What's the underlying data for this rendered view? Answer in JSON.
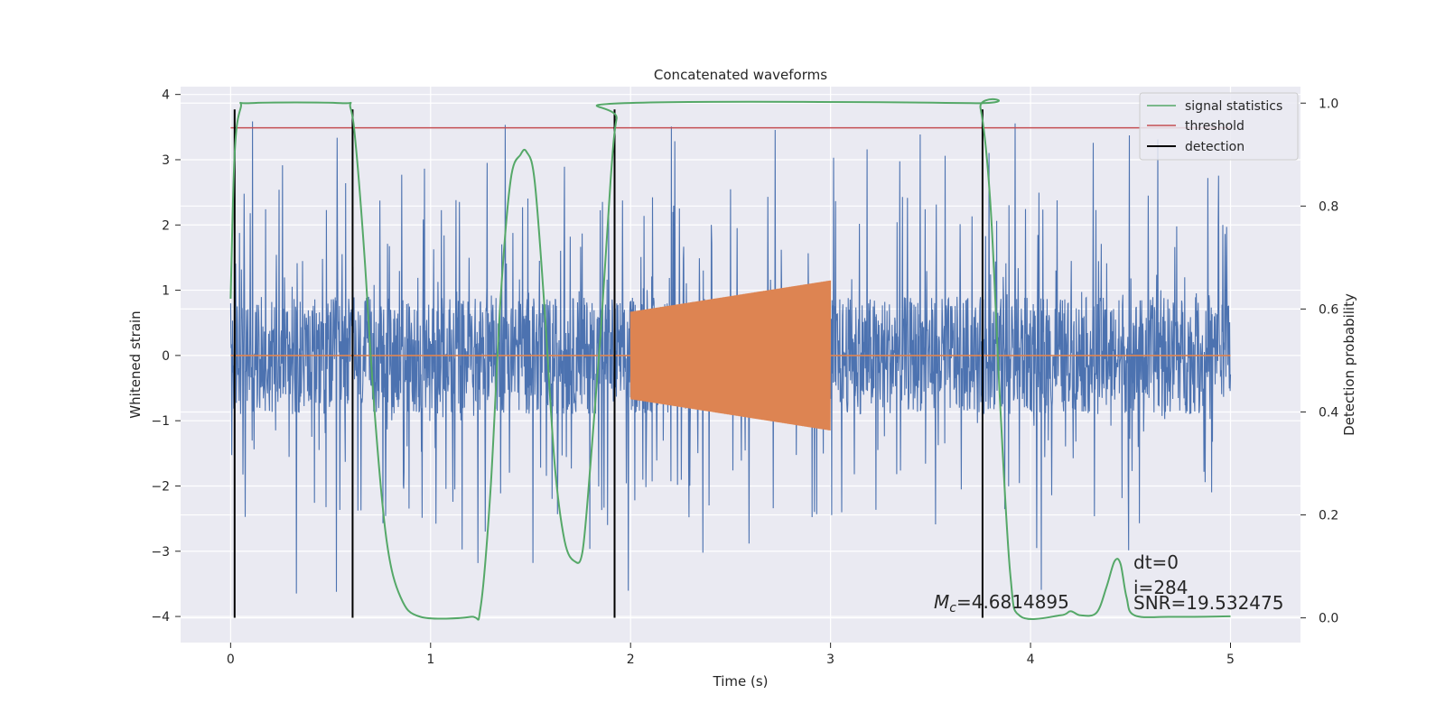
{
  "chart_data": {
    "type": "line",
    "title": "Concatenated waveforms",
    "xlabel": "Time (s)",
    "ylabel": "Whitened strain",
    "ylabel_right": "Detection probability",
    "xlim": [
      -0.25,
      5.35
    ],
    "ylim": [
      -4.4,
      4.12
    ],
    "ylim_right": [
      -0.048,
      1.032
    ],
    "xticks": [
      0,
      1,
      2,
      3,
      4,
      5
    ],
    "yticks": [
      -4,
      -3,
      -2,
      -1,
      0,
      1,
      2,
      3,
      4
    ],
    "yticks_right": [
      0.0,
      0.2,
      0.4,
      0.6,
      0.8,
      1.0
    ],
    "xtick_labels": [
      "0",
      "1",
      "2",
      "3",
      "4",
      "5"
    ],
    "ytick_labels": [
      "−4",
      "−3",
      "−2",
      "−1",
      "0",
      "1",
      "2",
      "3",
      "4"
    ],
    "ytick_right_labels": [
      "0.0",
      "0.2",
      "0.4",
      "0.6",
      "0.8",
      "1.0"
    ],
    "grid": true,
    "legend_position": "top-right",
    "colors": {
      "noise": "#4c72b0",
      "template": "#dd8452",
      "statistic": "#55a868",
      "threshold": "#c44e52",
      "detection": "#000000",
      "background": "#eaeaf2"
    },
    "noise": {
      "x_start": 0,
      "x_end": 5,
      "envelope": 0.9,
      "peak_max": 3.88,
      "trough_min": -4.02
    },
    "template": {
      "x_start": 2.0,
      "x_end": 3.0,
      "amplitude_start": 0.67,
      "amplitude_end": 1.15,
      "zero_line": [
        0,
        5
      ]
    },
    "series": [
      {
        "name": "signal statistics",
        "axis": "right",
        "points": [
          [
            0.0,
            0.62
          ],
          [
            0.02,
            0.9
          ],
          [
            0.05,
            0.99
          ],
          [
            0.1,
            1.0
          ],
          [
            0.55,
            1.0
          ],
          [
            0.6,
            0.99
          ],
          [
            0.63,
            0.9
          ],
          [
            0.67,
            0.7
          ],
          [
            0.72,
            0.4
          ],
          [
            0.78,
            0.15
          ],
          [
            0.85,
            0.04
          ],
          [
            0.95,
            0.002
          ],
          [
            1.2,
            0.002
          ],
          [
            1.25,
            0.02
          ],
          [
            1.3,
            0.25
          ],
          [
            1.35,
            0.62
          ],
          [
            1.4,
            0.85
          ],
          [
            1.45,
            0.9
          ],
          [
            1.48,
            0.905
          ],
          [
            1.52,
            0.85
          ],
          [
            1.57,
            0.6
          ],
          [
            1.62,
            0.3
          ],
          [
            1.67,
            0.15
          ],
          [
            1.72,
            0.11
          ],
          [
            1.76,
            0.13
          ],
          [
            1.8,
            0.3
          ],
          [
            1.85,
            0.55
          ],
          [
            1.9,
            0.85
          ],
          [
            1.93,
            0.97
          ],
          [
            1.97,
            1.0
          ],
          [
            3.7,
            1.0
          ],
          [
            3.75,
            0.99
          ],
          [
            3.8,
            0.8
          ],
          [
            3.85,
            0.4
          ],
          [
            3.9,
            0.08
          ],
          [
            3.95,
            0.003
          ],
          [
            4.15,
            0.005
          ],
          [
            4.2,
            0.013
          ],
          [
            4.25,
            0.005
          ],
          [
            4.33,
            0.01
          ],
          [
            4.38,
            0.06
          ],
          [
            4.42,
            0.11
          ],
          [
            4.45,
            0.105
          ],
          [
            4.48,
            0.04
          ],
          [
            4.52,
            0.005
          ],
          [
            4.7,
            0.002
          ],
          [
            5.0,
            0.003
          ]
        ]
      },
      {
        "name": "threshold",
        "axis": "right",
        "x": [
          0,
          5
        ],
        "values": [
          0.952,
          0.952
        ]
      },
      {
        "name": "detection",
        "axis": "left",
        "x": [
          0.02,
          0.61,
          1.92,
          3.76
        ],
        "y_range": [
          -4.02,
          3.77
        ]
      }
    ],
    "annotations": {
      "mc_prefix": "M",
      "mc_subscript": "c",
      "mc_value": "=4.6814895",
      "dt": "dt=0",
      "i": "i=284",
      "snr": "SNR=19.532475"
    }
  }
}
